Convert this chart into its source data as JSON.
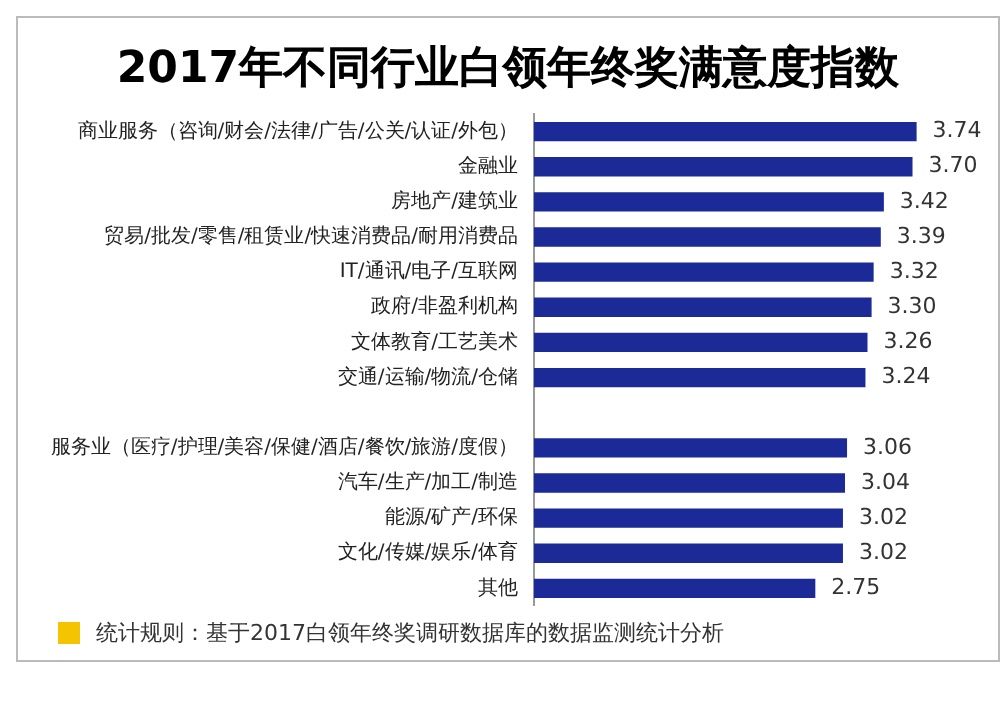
{
  "chart_data": {
    "type": "bar",
    "orientation": "horizontal",
    "title": "2017年不同行业白领年终奖满意度指数",
    "categories": [
      "商业服务（咨询/财会/法律/广告/公关/认证/外包）",
      "金融业",
      "房地产/建筑业",
      "贸易/批发/零售/租赁业/快速消费品/耐用消费品",
      "IT/通讯/电子/互联网",
      "政府/非盈利机构",
      "文体教育/工艺美术",
      "交通/运输/物流/仓储",
      null,
      "服务业（医疗/护理/美容/保健/酒店/餐饮/旅游/度假）",
      "汽车/生产/加工/制造",
      "能源/矿产/环保",
      "文化/传媒/娱乐/体育",
      "其他"
    ],
    "values": [
      3.74,
      3.7,
      3.42,
      3.39,
      3.32,
      3.3,
      3.26,
      3.24,
      null,
      3.06,
      3.04,
      3.02,
      3.02,
      2.75
    ],
    "color": "#1c2a98",
    "value_labels": [
      "3.74",
      "3.70",
      "3.42",
      "3.39",
      "3.32",
      "3.30",
      "3.26",
      "3.24",
      null,
      "3.06",
      "3.04",
      "3.02",
      "3.02",
      "2.75"
    ],
    "grid": false,
    "legend": false,
    "annotations": [
      "统计规则：基于2017白领年终奖调研数据库的数据监测统计分析"
    ]
  }
}
